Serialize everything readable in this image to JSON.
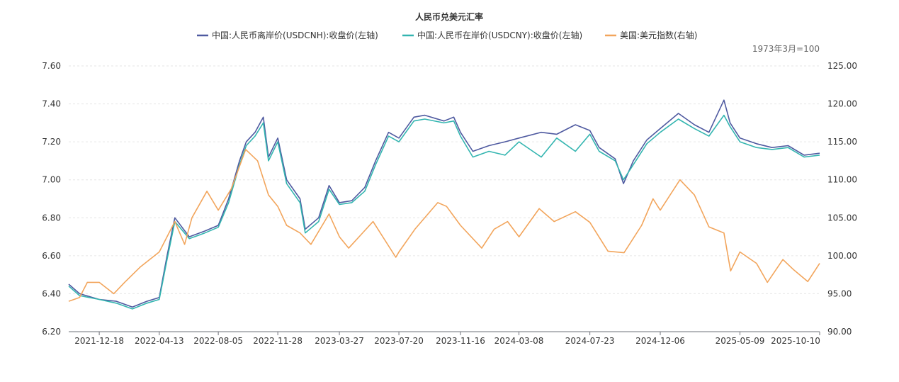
{
  "chart_data": {
    "type": "line",
    "title": "人民币兑美元汇率",
    "unit_note": "1973年3月=100",
    "legend_placement": "top-center",
    "grid": true,
    "x_axis": {
      "start": "2021-10-20",
      "end": "2025-10-10",
      "tick_labels": [
        "2021-12-18",
        "2022-04-13",
        "2022-08-05",
        "2022-11-28",
        "2023-03-27",
        "2023-07-20",
        "2023-11-16",
        "2024-03-08",
        "2024-07-23",
        "2024-12-06",
        "2025-05-09",
        "2025-10-10"
      ]
    },
    "y_left": {
      "min": 6.2,
      "max": 7.6,
      "ticks": [
        "6.20",
        "6.40",
        "6.60",
        "6.80",
        "7.00",
        "7.20",
        "7.40",
        "7.60"
      ]
    },
    "y_right": {
      "min": 90,
      "max": 125,
      "ticks": [
        "90.00",
        "95.00",
        "100.00",
        "105.00",
        "110.00",
        "115.00",
        "120.00",
        "125.00"
      ]
    },
    "series": [
      {
        "name": "中国:人民币离岸价(USDCNH):收盘价(左轴)",
        "axis": "left",
        "color": "#4f5aa0",
        "points": [
          [
            "2021-10-20",
            6.45
          ],
          [
            "2021-11-10",
            6.4
          ],
          [
            "2021-12-18",
            6.37
          ],
          [
            "2022-01-20",
            6.36
          ],
          [
            "2022-02-20",
            6.33
          ],
          [
            "2022-03-20",
            6.36
          ],
          [
            "2022-04-13",
            6.38
          ],
          [
            "2022-04-28",
            6.6
          ],
          [
            "2022-05-13",
            6.8
          ],
          [
            "2022-06-10",
            6.7
          ],
          [
            "2022-07-10",
            6.73
          ],
          [
            "2022-08-05",
            6.76
          ],
          [
            "2022-08-25",
            6.9
          ],
          [
            "2022-09-15",
            7.1
          ],
          [
            "2022-09-28",
            7.2
          ],
          [
            "2022-10-15",
            7.25
          ],
          [
            "2022-10-31",
            7.33
          ],
          [
            "2022-11-10",
            7.12
          ],
          [
            "2022-11-28",
            7.22
          ],
          [
            "2022-12-15",
            7.0
          ],
          [
            "2023-01-10",
            6.9
          ],
          [
            "2023-01-20",
            6.74
          ],
          [
            "2023-02-15",
            6.8
          ],
          [
            "2023-03-07",
            6.97
          ],
          [
            "2023-03-27",
            6.88
          ],
          [
            "2023-04-20",
            6.89
          ],
          [
            "2023-05-15",
            6.96
          ],
          [
            "2023-06-05",
            7.1
          ],
          [
            "2023-06-30",
            7.25
          ],
          [
            "2023-07-20",
            7.22
          ],
          [
            "2023-08-18",
            7.33
          ],
          [
            "2023-09-08",
            7.34
          ],
          [
            "2023-10-15",
            7.31
          ],
          [
            "2023-11-03",
            7.33
          ],
          [
            "2023-11-16",
            7.25
          ],
          [
            "2023-12-10",
            7.15
          ],
          [
            "2024-01-10",
            7.18
          ],
          [
            "2024-02-10",
            7.2
          ],
          [
            "2024-03-08",
            7.22
          ],
          [
            "2024-04-20",
            7.25
          ],
          [
            "2024-05-20",
            7.24
          ],
          [
            "2024-06-25",
            7.29
          ],
          [
            "2024-07-23",
            7.26
          ],
          [
            "2024-08-10",
            7.17
          ],
          [
            "2024-09-10",
            7.11
          ],
          [
            "2024-09-26",
            6.98
          ],
          [
            "2024-10-15",
            7.1
          ],
          [
            "2024-11-10",
            7.21
          ],
          [
            "2024-12-06",
            7.27
          ],
          [
            "2025-01-10",
            7.35
          ],
          [
            "2025-02-10",
            7.29
          ],
          [
            "2025-03-10",
            7.25
          ],
          [
            "2025-04-08",
            7.42
          ],
          [
            "2025-04-20",
            7.3
          ],
          [
            "2025-05-09",
            7.22
          ],
          [
            "2025-06-10",
            7.19
          ],
          [
            "2025-07-10",
            7.17
          ],
          [
            "2025-08-10",
            7.18
          ],
          [
            "2025-09-10",
            7.13
          ],
          [
            "2025-10-10",
            7.14
          ]
        ]
      },
      {
        "name": "中国:人民币在岸价(USDCNY):收盘价(左轴)",
        "axis": "left",
        "color": "#33b5b0",
        "points": [
          [
            "2021-10-20",
            6.44
          ],
          [
            "2021-11-10",
            6.39
          ],
          [
            "2021-12-18",
            6.37
          ],
          [
            "2022-01-20",
            6.35
          ],
          [
            "2022-02-20",
            6.32
          ],
          [
            "2022-03-20",
            6.35
          ],
          [
            "2022-04-13",
            6.37
          ],
          [
            "2022-04-28",
            6.58
          ],
          [
            "2022-05-13",
            6.78
          ],
          [
            "2022-06-10",
            6.69
          ],
          [
            "2022-07-10",
            6.72
          ],
          [
            "2022-08-05",
            6.75
          ],
          [
            "2022-08-25",
            6.88
          ],
          [
            "2022-09-15",
            7.08
          ],
          [
            "2022-09-28",
            7.18
          ],
          [
            "2022-10-15",
            7.23
          ],
          [
            "2022-10-31",
            7.3
          ],
          [
            "2022-11-10",
            7.1
          ],
          [
            "2022-11-28",
            7.2
          ],
          [
            "2022-12-15",
            6.98
          ],
          [
            "2023-01-10",
            6.88
          ],
          [
            "2023-01-20",
            6.72
          ],
          [
            "2023-02-15",
            6.78
          ],
          [
            "2023-03-07",
            6.95
          ],
          [
            "2023-03-27",
            6.87
          ],
          [
            "2023-04-20",
            6.88
          ],
          [
            "2023-05-15",
            6.94
          ],
          [
            "2023-06-05",
            7.08
          ],
          [
            "2023-06-30",
            7.23
          ],
          [
            "2023-07-20",
            7.2
          ],
          [
            "2023-08-18",
            7.31
          ],
          [
            "2023-09-08",
            7.32
          ],
          [
            "2023-10-15",
            7.3
          ],
          [
            "2023-11-03",
            7.31
          ],
          [
            "2023-11-16",
            7.23
          ],
          [
            "2023-12-10",
            7.12
          ],
          [
            "2024-01-10",
            7.15
          ],
          [
            "2024-02-10",
            7.13
          ],
          [
            "2024-03-08",
            7.2
          ],
          [
            "2024-04-20",
            7.12
          ],
          [
            "2024-05-20",
            7.22
          ],
          [
            "2024-06-25",
            7.15
          ],
          [
            "2024-07-23",
            7.24
          ],
          [
            "2024-08-10",
            7.15
          ],
          [
            "2024-09-10",
            7.1
          ],
          [
            "2024-09-26",
            7.0
          ],
          [
            "2024-10-15",
            7.08
          ],
          [
            "2024-11-10",
            7.19
          ],
          [
            "2024-12-06",
            7.25
          ],
          [
            "2025-01-10",
            7.32
          ],
          [
            "2025-02-10",
            7.27
          ],
          [
            "2025-03-10",
            7.23
          ],
          [
            "2025-04-08",
            7.34
          ],
          [
            "2025-04-20",
            7.28
          ],
          [
            "2025-05-09",
            7.2
          ],
          [
            "2025-06-10",
            7.17
          ],
          [
            "2025-07-10",
            7.16
          ],
          [
            "2025-08-10",
            7.17
          ],
          [
            "2025-09-10",
            7.12
          ],
          [
            "2025-10-10",
            7.13
          ]
        ]
      },
      {
        "name": "美国:美元指数(右轴)",
        "axis": "right",
        "color": "#f2a55c",
        "points": [
          [
            "2021-10-20",
            94.0
          ],
          [
            "2021-11-10",
            94.5
          ],
          [
            "2021-11-25",
            96.5
          ],
          [
            "2021-12-18",
            96.5
          ],
          [
            "2022-01-15",
            95.0
          ],
          [
            "2022-02-05",
            96.5
          ],
          [
            "2022-03-07",
            98.5
          ],
          [
            "2022-04-13",
            100.5
          ],
          [
            "2022-05-13",
            104.5
          ],
          [
            "2022-06-01",
            101.5
          ],
          [
            "2022-06-15",
            105.0
          ],
          [
            "2022-07-14",
            108.5
          ],
          [
            "2022-08-05",
            106.0
          ],
          [
            "2022-08-30",
            108.8
          ],
          [
            "2022-09-27",
            114.0
          ],
          [
            "2022-10-20",
            112.5
          ],
          [
            "2022-11-10",
            108.0
          ],
          [
            "2022-11-28",
            106.5
          ],
          [
            "2022-12-15",
            104.0
          ],
          [
            "2023-01-10",
            103.0
          ],
          [
            "2023-01-31",
            101.5
          ],
          [
            "2023-03-07",
            105.5
          ],
          [
            "2023-03-27",
            102.5
          ],
          [
            "2023-04-14",
            101.0
          ],
          [
            "2023-05-31",
            104.5
          ],
          [
            "2023-07-14",
            99.8
          ],
          [
            "2023-07-20",
            100.5
          ],
          [
            "2023-08-20",
            103.5
          ],
          [
            "2023-10-03",
            107.0
          ],
          [
            "2023-10-20",
            106.5
          ],
          [
            "2023-11-16",
            104.0
          ],
          [
            "2023-12-27",
            101.0
          ],
          [
            "2024-01-20",
            103.5
          ],
          [
            "2024-02-15",
            104.5
          ],
          [
            "2024-03-08",
            102.5
          ],
          [
            "2024-04-16",
            106.2
          ],
          [
            "2024-05-15",
            104.5
          ],
          [
            "2024-06-25",
            105.8
          ],
          [
            "2024-07-23",
            104.4
          ],
          [
            "2024-08-27",
            100.6
          ],
          [
            "2024-09-27",
            100.4
          ],
          [
            "2024-10-31",
            104.0
          ],
          [
            "2024-11-22",
            107.5
          ],
          [
            "2024-12-06",
            106.0
          ],
          [
            "2025-01-13",
            110.0
          ],
          [
            "2025-02-10",
            108.0
          ],
          [
            "2025-03-10",
            103.8
          ],
          [
            "2025-04-08",
            103.0
          ],
          [
            "2025-04-21",
            98.0
          ],
          [
            "2025-05-09",
            100.5
          ],
          [
            "2025-06-10",
            99.0
          ],
          [
            "2025-07-01",
            96.5
          ],
          [
            "2025-07-31",
            99.5
          ],
          [
            "2025-08-20",
            98.2
          ],
          [
            "2025-09-17",
            96.6
          ],
          [
            "2025-10-10",
            99.0
          ]
        ]
      }
    ]
  }
}
